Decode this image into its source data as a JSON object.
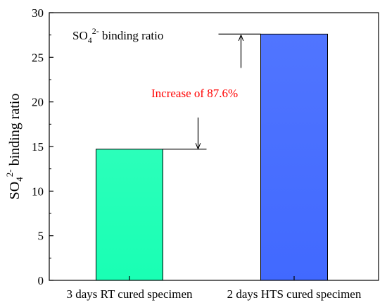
{
  "chart_data": {
    "type": "bar",
    "categories": [
      "3 days RT cured specimen",
      "2 days HTS cured specimen"
    ],
    "values": [
      14.7,
      27.6
    ],
    "colors": [
      "#19FFB4",
      "#4169FF"
    ],
    "ylabel_main": "SO",
    "ylabel_sub": "4",
    "ylabel_sup": "2-",
    "ylabel_rest": " binding ratio",
    "ylim": [
      0,
      30
    ],
    "yticks": [
      "0",
      "5",
      "10",
      "15",
      "20",
      "25",
      "30"
    ],
    "legend": {
      "main": "SO",
      "sub": "4",
      "sup": "2-",
      "rest": " binding ratio",
      "placement": "top-left"
    },
    "annotation": {
      "text": "Increase of 87.6%",
      "color": "#ff0000"
    }
  }
}
